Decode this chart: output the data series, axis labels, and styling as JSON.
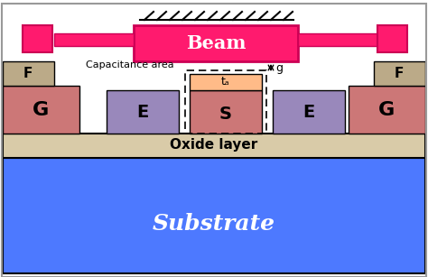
{
  "bg_color": "#ffffff",
  "substrate_color": "#4d79ff",
  "oxide_color": "#d9cba8",
  "beam_color": "#ff1a6e",
  "beam_edge": "#cc0055",
  "G_color": "#cc7777",
  "E_color": "#9988bb",
  "S_color": "#cc7777",
  "S_top_color": "#ffbb88",
  "F_color": "#bbaa88",
  "beam_text": "Beam",
  "substrate_text": "Substrate",
  "oxide_text": "Oxide layer",
  "cap_label": "Capacitance area",
  "g_label": "g",
  "td_label": "tₐ",
  "labels_G": "G",
  "labels_E": "E",
  "labels_S": "S",
  "labels_F": "F"
}
